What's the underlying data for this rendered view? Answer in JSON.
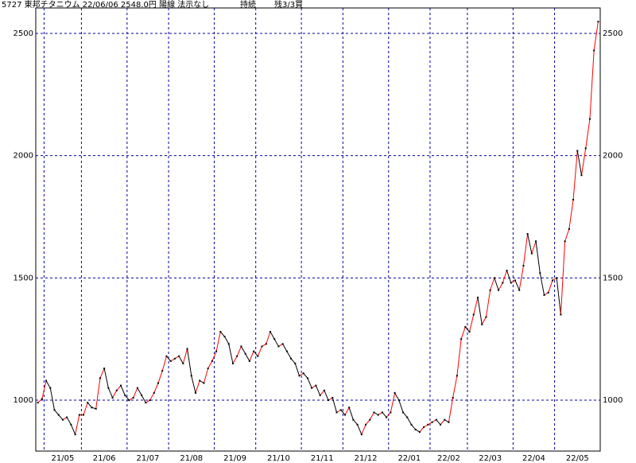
{
  "chart_data": {
    "type": "line",
    "title": "5727 東邦チタニウム 22/06/06 2548.0円 陽線 法示なし",
    "annotations": [
      "持続",
      "残3/3買"
    ],
    "categories": [
      null,
      null,
      "21/05",
      null,
      null,
      null,
      null,
      null,
      null,
      null,
      null,
      "21/06",
      null,
      null,
      null,
      null,
      null,
      null,
      null,
      null,
      null,
      null,
      "21/07",
      null,
      null,
      null,
      null,
      null,
      null,
      null,
      null,
      null,
      "21/08",
      null,
      null,
      null,
      null,
      null,
      null,
      null,
      null,
      null,
      null,
      "21/09",
      null,
      null,
      null,
      null,
      null,
      null,
      null,
      null,
      null,
      "21/10",
      null,
      null,
      null,
      null,
      null,
      null,
      null,
      null,
      null,
      null,
      "21/11",
      null,
      null,
      null,
      null,
      null,
      null,
      null,
      null,
      null,
      "21/12",
      null,
      null,
      null,
      null,
      null,
      null,
      null,
      null,
      null,
      null,
      "22/01",
      null,
      null,
      null,
      null,
      null,
      null,
      null,
      null,
      null,
      "22/02",
      null,
      null,
      null,
      null,
      null,
      null,
      null,
      null,
      "22/03",
      null,
      null,
      null,
      null,
      null,
      null,
      null,
      null,
      null,
      null,
      "22/04",
      null,
      null,
      null,
      null,
      null,
      null,
      null,
      null,
      null,
      "22/05",
      null,
      null,
      null,
      null,
      null,
      null,
      null,
      null,
      null,
      null
    ],
    "values": [
      990,
      1005,
      1080,
      1050,
      960,
      940,
      920,
      930,
      900,
      860,
      940,
      940,
      990,
      970,
      965,
      1090,
      1130,
      1050,
      1010,
      1040,
      1060,
      1020,
      1000,
      1010,
      1050,
      1020,
      990,
      1000,
      1030,
      1070,
      1120,
      1180,
      1160,
      1170,
      1180,
      1150,
      1210,
      1100,
      1030,
      1080,
      1070,
      1130,
      1160,
      1200,
      1280,
      1260,
      1230,
      1150,
      1180,
      1220,
      1190,
      1160,
      1200,
      1180,
      1220,
      1230,
      1280,
      1250,
      1220,
      1230,
      1200,
      1170,
      1150,
      1100,
      1110,
      1090,
      1050,
      1060,
      1020,
      1040,
      1000,
      1010,
      950,
      960,
      940,
      970,
      920,
      900,
      860,
      900,
      920,
      950,
      940,
      950,
      930,
      950,
      1030,
      1000,
      950,
      930,
      900,
      880,
      870,
      890,
      900,
      910,
      920,
      900,
      920,
      910,
      1010,
      1100,
      1250,
      1300,
      1280,
      1350,
      1420,
      1310,
      1340,
      1450,
      1500,
      1450,
      1480,
      1530,
      1480,
      1490,
      1450,
      1550,
      1680,
      1600,
      1650,
      1520,
      1430,
      1440,
      1490,
      1500,
      1350,
      1650,
      1700,
      1820,
      2020,
      1920,
      2030,
      2150,
      2430,
      2548
    ],
    "up_color": "#ff0000",
    "down_color": "#000000",
    "point_color": "#000000",
    "ylim": [
      792,
      2604
    ],
    "yticks": [
      1000,
      1500,
      2000,
      2500
    ],
    "grid": true,
    "grid_color": "#0000a0"
  }
}
